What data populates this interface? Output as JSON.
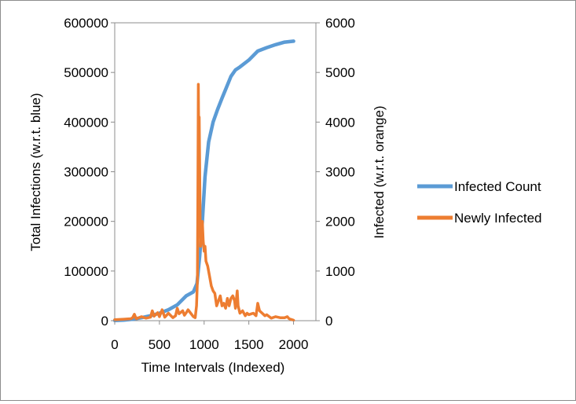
{
  "chart_data": {
    "type": "line",
    "title": "",
    "xlabel": "Time Intervals (Indexed)",
    "ylabel_left": "Total Infections (w.r.t. blue)",
    "ylabel_right": "Infected (w.r.t. orange)",
    "xlim": [
      0,
      2250
    ],
    "ylim_left": [
      0,
      600000
    ],
    "ylim_right": [
      0,
      6000
    ],
    "x_ticks": [
      "0",
      "500",
      "1000",
      "1500",
      "2000"
    ],
    "y_ticks_left": [
      "0",
      "100000",
      "200000",
      "300000",
      "400000",
      "500000",
      "600000"
    ],
    "y_ticks_right": [
      "0",
      "1000",
      "2000",
      "3000",
      "4000",
      "5000",
      "6000"
    ],
    "grid": false,
    "legend_position": "right",
    "series": [
      {
        "name": "Infected Count",
        "axis": "left",
        "color": "#5B9BD5",
        "points": [
          [
            0,
            500
          ],
          [
            100,
            1200
          ],
          [
            200,
            3000
          ],
          [
            300,
            6000
          ],
          [
            400,
            10000
          ],
          [
            500,
            15000
          ],
          [
            600,
            22000
          ],
          [
            700,
            32000
          ],
          [
            800,
            50000
          ],
          [
            880,
            58000
          ],
          [
            920,
            75000
          ],
          [
            950,
            130000
          ],
          [
            980,
            200000
          ],
          [
            1010,
            290000
          ],
          [
            1050,
            360000
          ],
          [
            1100,
            400000
          ],
          [
            1150,
            425000
          ],
          [
            1200,
            448000
          ],
          [
            1250,
            470000
          ],
          [
            1300,
            492000
          ],
          [
            1350,
            505000
          ],
          [
            1400,
            511000
          ],
          [
            1500,
            525000
          ],
          [
            1600,
            543000
          ],
          [
            1700,
            550000
          ],
          [
            1800,
            556000
          ],
          [
            1900,
            561000
          ],
          [
            2000,
            563000
          ]
        ]
      },
      {
        "name": "Newly Infected",
        "axis": "right",
        "color": "#ED7D31",
        "points": [
          [
            0,
            20
          ],
          [
            100,
            30
          ],
          [
            180,
            40
          ],
          [
            200,
            60
          ],
          [
            220,
            130
          ],
          [
            240,
            40
          ],
          [
            300,
            80
          ],
          [
            350,
            50
          ],
          [
            400,
            70
          ],
          [
            420,
            200
          ],
          [
            440,
            90
          ],
          [
            480,
            160
          ],
          [
            500,
            80
          ],
          [
            530,
            220
          ],
          [
            560,
            70
          ],
          [
            600,
            150
          ],
          [
            650,
            60
          ],
          [
            680,
            100
          ],
          [
            700,
            250
          ],
          [
            720,
            140
          ],
          [
            760,
            200
          ],
          [
            780,
            110
          ],
          [
            800,
            160
          ],
          [
            820,
            220
          ],
          [
            850,
            150
          ],
          [
            880,
            80
          ],
          [
            900,
            60
          ],
          [
            915,
            300
          ],
          [
            925,
            800
          ],
          [
            930,
            2500
          ],
          [
            935,
            4760
          ],
          [
            940,
            3500
          ],
          [
            945,
            4100
          ],
          [
            950,
            3100
          ],
          [
            955,
            2000
          ],
          [
            960,
            1500
          ],
          [
            970,
            1800
          ],
          [
            980,
            2000
          ],
          [
            990,
            1600
          ],
          [
            1000,
            1400
          ],
          [
            1010,
            1500
          ],
          [
            1020,
            1200
          ],
          [
            1040,
            1100
          ],
          [
            1060,
            900
          ],
          [
            1080,
            700
          ],
          [
            1100,
            600
          ],
          [
            1120,
            550
          ],
          [
            1140,
            300
          ],
          [
            1160,
            400
          ],
          [
            1180,
            500
          ],
          [
            1200,
            300
          ],
          [
            1220,
            350
          ],
          [
            1240,
            250
          ],
          [
            1260,
            450
          ],
          [
            1280,
            300
          ],
          [
            1300,
            450
          ],
          [
            1320,
            500
          ],
          [
            1340,
            400
          ],
          [
            1350,
            250
          ],
          [
            1370,
            600
          ],
          [
            1380,
            300
          ],
          [
            1400,
            150
          ],
          [
            1430,
            200
          ],
          [
            1460,
            100
          ],
          [
            1480,
            150
          ],
          [
            1500,
            120
          ],
          [
            1530,
            140
          ],
          [
            1550,
            150
          ],
          [
            1580,
            100
          ],
          [
            1600,
            350
          ],
          [
            1620,
            200
          ],
          [
            1650,
            150
          ],
          [
            1680,
            100
          ],
          [
            1700,
            120
          ],
          [
            1750,
            50
          ],
          [
            1800,
            80
          ],
          [
            1850,
            60
          ],
          [
            1900,
            60
          ],
          [
            1930,
            80
          ],
          [
            1950,
            40
          ],
          [
            2000,
            10
          ]
        ]
      }
    ]
  }
}
